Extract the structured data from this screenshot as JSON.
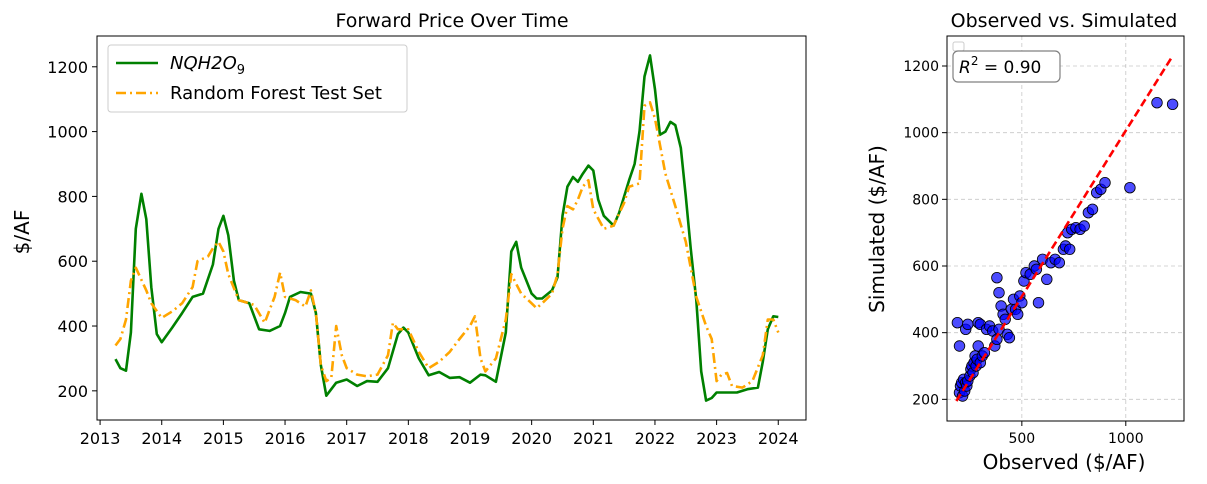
{
  "chart_data": [
    {
      "type": "line",
      "title": "Forward Price Over Time",
      "xlabel": "",
      "ylabel": "$/AF",
      "xlim": [
        2012.95,
        2024.45
      ],
      "ylim": [
        110,
        1295
      ],
      "x_ticks": [
        2013,
        2014,
        2015,
        2016,
        2017,
        2018,
        2019,
        2020,
        2021,
        2022,
        2023,
        2024
      ],
      "y_ticks": [
        200,
        400,
        600,
        800,
        1000,
        1200
      ],
      "grid": false,
      "legend_position": "upper-left",
      "series": [
        {
          "name": "NQH2O",
          "name_subscript": "9",
          "color": "#008000",
          "style": "solid",
          "points": [
            [
              2013.25,
              298
            ],
            [
              2013.33,
              270
            ],
            [
              2013.42,
              262
            ],
            [
              2013.5,
              380
            ],
            [
              2013.58,
              700
            ],
            [
              2013.67,
              808
            ],
            [
              2013.75,
              730
            ],
            [
              2013.83,
              520
            ],
            [
              2013.92,
              375
            ],
            [
              2014.0,
              350
            ],
            [
              2014.17,
              395
            ],
            [
              2014.33,
              440
            ],
            [
              2014.5,
              490
            ],
            [
              2014.67,
              500
            ],
            [
              2014.83,
              590
            ],
            [
              2014.92,
              700
            ],
            [
              2015.0,
              740
            ],
            [
              2015.08,
              680
            ],
            [
              2015.17,
              540
            ],
            [
              2015.25,
              480
            ],
            [
              2015.42,
              470
            ],
            [
              2015.58,
              390
            ],
            [
              2015.75,
              385
            ],
            [
              2015.92,
              400
            ],
            [
              2016.0,
              440
            ],
            [
              2016.08,
              490
            ],
            [
              2016.25,
              505
            ],
            [
              2016.42,
              500
            ],
            [
              2016.5,
              440
            ],
            [
              2016.58,
              280
            ],
            [
              2016.67,
              185
            ],
            [
              2016.83,
              225
            ],
            [
              2017.0,
              235
            ],
            [
              2017.17,
              215
            ],
            [
              2017.33,
              230
            ],
            [
              2017.5,
              228
            ],
            [
              2017.67,
              270
            ],
            [
              2017.83,
              375
            ],
            [
              2017.92,
              395
            ],
            [
              2018.0,
              380
            ],
            [
              2018.17,
              300
            ],
            [
              2018.33,
              248
            ],
            [
              2018.5,
              258
            ],
            [
              2018.67,
              240
            ],
            [
              2018.83,
              242
            ],
            [
              2019.0,
              225
            ],
            [
              2019.17,
              250
            ],
            [
              2019.25,
              248
            ],
            [
              2019.42,
              228
            ],
            [
              2019.58,
              380
            ],
            [
              2019.67,
              630
            ],
            [
              2019.75,
              660
            ],
            [
              2019.83,
              580
            ],
            [
              2020.0,
              500
            ],
            [
              2020.08,
              485
            ],
            [
              2020.17,
              485
            ],
            [
              2020.33,
              510
            ],
            [
              2020.42,
              550
            ],
            [
              2020.5,
              740
            ],
            [
              2020.58,
              830
            ],
            [
              2020.67,
              860
            ],
            [
              2020.75,
              845
            ],
            [
              2020.83,
              870
            ],
            [
              2020.92,
              895
            ],
            [
              2021.0,
              880
            ],
            [
              2021.08,
              790
            ],
            [
              2021.17,
              740
            ],
            [
              2021.25,
              725
            ],
            [
              2021.33,
              710
            ],
            [
              2021.42,
              750
            ],
            [
              2021.58,
              850
            ],
            [
              2021.67,
              900
            ],
            [
              2021.75,
              1000
            ],
            [
              2021.83,
              1170
            ],
            [
              2021.92,
              1235
            ],
            [
              2022.0,
              1130
            ],
            [
              2022.08,
              990
            ],
            [
              2022.17,
              1000
            ],
            [
              2022.25,
              1030
            ],
            [
              2022.33,
              1020
            ],
            [
              2022.42,
              950
            ],
            [
              2022.5,
              800
            ],
            [
              2022.58,
              640
            ],
            [
              2022.67,
              480
            ],
            [
              2022.75,
              260
            ],
            [
              2022.83,
              170
            ],
            [
              2022.92,
              178
            ],
            [
              2023.0,
              195
            ],
            [
              2023.17,
              195
            ],
            [
              2023.33,
              195
            ],
            [
              2023.5,
              205
            ],
            [
              2023.67,
              210
            ],
            [
              2023.75,
              290
            ],
            [
              2023.83,
              390
            ],
            [
              2023.92,
              430
            ],
            [
              2024.0,
              428
            ]
          ]
        },
        {
          "name": "Random Forest Test Set",
          "color": "#FFA500",
          "style": "dash-dot",
          "points": [
            [
              2013.25,
              340
            ],
            [
              2013.33,
              360
            ],
            [
              2013.42,
              420
            ],
            [
              2013.5,
              540
            ],
            [
              2013.58,
              580
            ],
            [
              2013.75,
              510
            ],
            [
              2013.83,
              470
            ],
            [
              2014.0,
              425
            ],
            [
              2014.17,
              445
            ],
            [
              2014.33,
              470
            ],
            [
              2014.5,
              520
            ],
            [
              2014.58,
              600
            ],
            [
              2014.75,
              615
            ],
            [
              2014.83,
              640
            ],
            [
              2014.92,
              660
            ],
            [
              2015.0,
              630
            ],
            [
              2015.08,
              560
            ],
            [
              2015.25,
              480
            ],
            [
              2015.42,
              470
            ],
            [
              2015.5,
              465
            ],
            [
              2015.67,
              410
            ],
            [
              2015.75,
              450
            ],
            [
              2015.83,
              490
            ],
            [
              2015.92,
              565
            ],
            [
              2016.0,
              490
            ],
            [
              2016.17,
              480
            ],
            [
              2016.33,
              460
            ],
            [
              2016.42,
              510
            ],
            [
              2016.5,
              440
            ],
            [
              2016.58,
              280
            ],
            [
              2016.67,
              230
            ],
            [
              2016.75,
              240
            ],
            [
              2016.83,
              400
            ],
            [
              2016.92,
              310
            ],
            [
              2017.0,
              270
            ],
            [
              2017.17,
              250
            ],
            [
              2017.33,
              245
            ],
            [
              2017.5,
              250
            ],
            [
              2017.67,
              310
            ],
            [
              2017.75,
              410
            ],
            [
              2017.83,
              390
            ],
            [
              2018.0,
              390
            ],
            [
              2018.17,
              320
            ],
            [
              2018.33,
              270
            ],
            [
              2018.5,
              290
            ],
            [
              2018.67,
              320
            ],
            [
              2018.83,
              360
            ],
            [
              2019.0,
              400
            ],
            [
              2019.08,
              430
            ],
            [
              2019.17,
              300
            ],
            [
              2019.25,
              260
            ],
            [
              2019.42,
              300
            ],
            [
              2019.58,
              420
            ],
            [
              2019.67,
              560
            ],
            [
              2019.75,
              530
            ],
            [
              2019.83,
              500
            ],
            [
              2020.0,
              470
            ],
            [
              2020.08,
              455
            ],
            [
              2020.17,
              470
            ],
            [
              2020.33,
              500
            ],
            [
              2020.42,
              560
            ],
            [
              2020.5,
              700
            ],
            [
              2020.58,
              770
            ],
            [
              2020.67,
              760
            ],
            [
              2020.75,
              790
            ],
            [
              2020.83,
              830
            ],
            [
              2020.92,
              850
            ],
            [
              2021.0,
              760
            ],
            [
              2021.17,
              700
            ],
            [
              2021.33,
              710
            ],
            [
              2021.5,
              780
            ],
            [
              2021.58,
              830
            ],
            [
              2021.75,
              840
            ],
            [
              2021.83,
              1080
            ],
            [
              2021.92,
              1090
            ],
            [
              2022.0,
              1040
            ],
            [
              2022.17,
              870
            ],
            [
              2022.33,
              770
            ],
            [
              2022.5,
              660
            ],
            [
              2022.67,
              490
            ],
            [
              2022.83,
              400
            ],
            [
              2022.92,
              360
            ],
            [
              2023.0,
              230
            ],
            [
              2023.08,
              250
            ],
            [
              2023.17,
              255
            ],
            [
              2023.25,
              215
            ],
            [
              2023.42,
              210
            ],
            [
              2023.58,
              230
            ],
            [
              2023.75,
              310
            ],
            [
              2023.83,
              420
            ],
            [
              2023.92,
              420
            ],
            [
              2024.0,
              380
            ]
          ]
        }
      ]
    },
    {
      "type": "scatter",
      "title": "Observed vs. Simulated",
      "xlabel": "Observed ($/AF)",
      "ylabel": "Simulated ($/AF)",
      "xlim": [
        140,
        1280
      ],
      "ylim": [
        135,
        1290
      ],
      "x_ticks": [
        500,
        1000
      ],
      "y_ticks": [
        200,
        400,
        600,
        800,
        1000,
        1200
      ],
      "grid": true,
      "annotation": {
        "prefix": "R",
        "superscript": "2",
        "text": " = 0.90"
      },
      "point_color": "#0000FF",
      "reference_line": {
        "from": [
          185,
          195
        ],
        "to": [
          1225,
          1230
        ],
        "color": "#FF0000",
        "style": "dashed"
      },
      "points": [
        [
          200,
          220
        ],
        [
          205,
          240
        ],
        [
          210,
          250
        ],
        [
          215,
          210
        ],
        [
          220,
          260
        ],
        [
          225,
          225
        ],
        [
          230,
          250
        ],
        [
          235,
          240
        ],
        [
          240,
          255
        ],
        [
          250,
          270
        ],
        [
          255,
          290
        ],
        [
          260,
          300
        ],
        [
          265,
          280
        ],
        [
          270,
          310
        ],
        [
          275,
          330
        ],
        [
          280,
          300
        ],
        [
          285,
          320
        ],
        [
          290,
          360
        ],
        [
          300,
          310
        ],
        [
          310,
          330
        ],
        [
          320,
          340
        ],
        [
          190,
          430
        ],
        [
          200,
          360
        ],
        [
          230,
          410
        ],
        [
          240,
          425
        ],
        [
          290,
          430
        ],
        [
          300,
          425
        ],
        [
          330,
          410
        ],
        [
          345,
          420
        ],
        [
          360,
          405
        ],
        [
          370,
          360
        ],
        [
          380,
          380
        ],
        [
          390,
          410
        ],
        [
          400,
          480
        ],
        [
          410,
          455
        ],
        [
          420,
          440
        ],
        [
          430,
          395
        ],
        [
          440,
          385
        ],
        [
          450,
          470
        ],
        [
          460,
          500
        ],
        [
          470,
          470
        ],
        [
          480,
          455
        ],
        [
          490,
          510
        ],
        [
          500,
          490
        ],
        [
          510,
          555
        ],
        [
          520,
          580
        ],
        [
          540,
          575
        ],
        [
          560,
          600
        ],
        [
          570,
          590
        ],
        [
          580,
          490
        ],
        [
          600,
          620
        ],
        [
          620,
          560
        ],
        [
          640,
          610
        ],
        [
          660,
          620
        ],
        [
          680,
          610
        ],
        [
          700,
          650
        ],
        [
          710,
          660
        ],
        [
          720,
          700
        ],
        [
          730,
          650
        ],
        [
          740,
          710
        ],
        [
          760,
          715
        ],
        [
          780,
          710
        ],
        [
          800,
          720
        ],
        [
          820,
          760
        ],
        [
          840,
          770
        ],
        [
          860,
          820
        ],
        [
          880,
          830
        ],
        [
          900,
          850
        ],
        [
          380,
          565
        ],
        [
          390,
          520
        ],
        [
          1020,
          835
        ],
        [
          1150,
          1090
        ],
        [
          1225,
          1085
        ]
      ]
    }
  ]
}
